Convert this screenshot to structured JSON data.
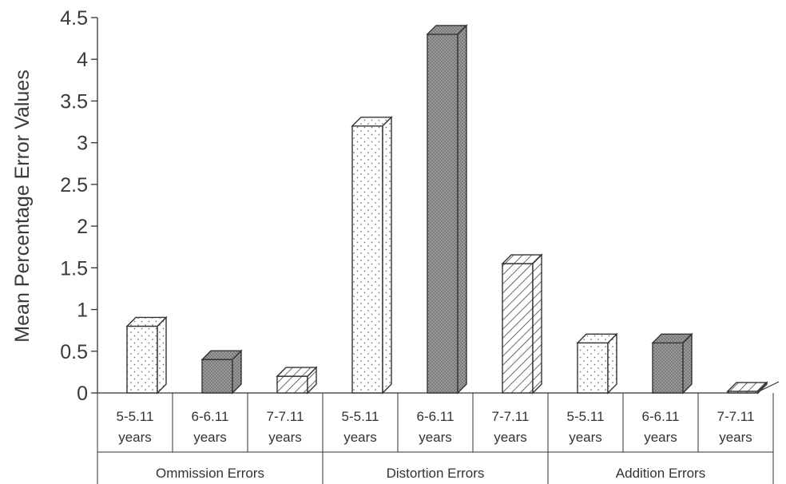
{
  "chart_data": {
    "type": "bar",
    "title": "",
    "ylabel": "Mean Percentage Error Values",
    "xlabel": "",
    "ylim": [
      0,
      4.5
    ],
    "yticks": [
      "0",
      "0.5",
      "1",
      "1.5",
      "2",
      "2.5",
      "3",
      "3.5",
      "4",
      "4.5"
    ],
    "groups": [
      {
        "label": "Ommission Errors",
        "bars": [
          {
            "label_line1": "5-5.11",
            "label_line2": "years",
            "value": 0.8,
            "pattern": "dots"
          },
          {
            "label_line1": "6-6.11",
            "label_line2": "years",
            "value": 0.4,
            "pattern": "dense"
          },
          {
            "label_line1": "7-7.11",
            "label_line2": "years",
            "value": 0.2,
            "pattern": "hatch"
          }
        ]
      },
      {
        "label": "Distortion Errors",
        "bars": [
          {
            "label_line1": "5-5.11",
            "label_line2": "years",
            "value": 3.2,
            "pattern": "dots"
          },
          {
            "label_line1": "6-6.11",
            "label_line2": "years",
            "value": 4.3,
            "pattern": "dense"
          },
          {
            "label_line1": "7-7.11",
            "label_line2": "years",
            "value": 1.55,
            "pattern": "hatch"
          }
        ]
      },
      {
        "label": "Addition Errors",
        "bars": [
          {
            "label_line1": "5-5.11",
            "label_line2": "years",
            "value": 0.6,
            "pattern": "dots"
          },
          {
            "label_line1": "6-6.11",
            "label_line2": "years",
            "value": 0.6,
            "pattern": "dense"
          },
          {
            "label_line1": "7-7.11",
            "label_line2": "years",
            "value": 0.02,
            "pattern": "hatch"
          }
        ]
      }
    ],
    "colors": {
      "stroke": "#333333",
      "background": "#ffffff",
      "dense_fill": "#8a8a8a",
      "dot_fill": "#777777"
    }
  }
}
